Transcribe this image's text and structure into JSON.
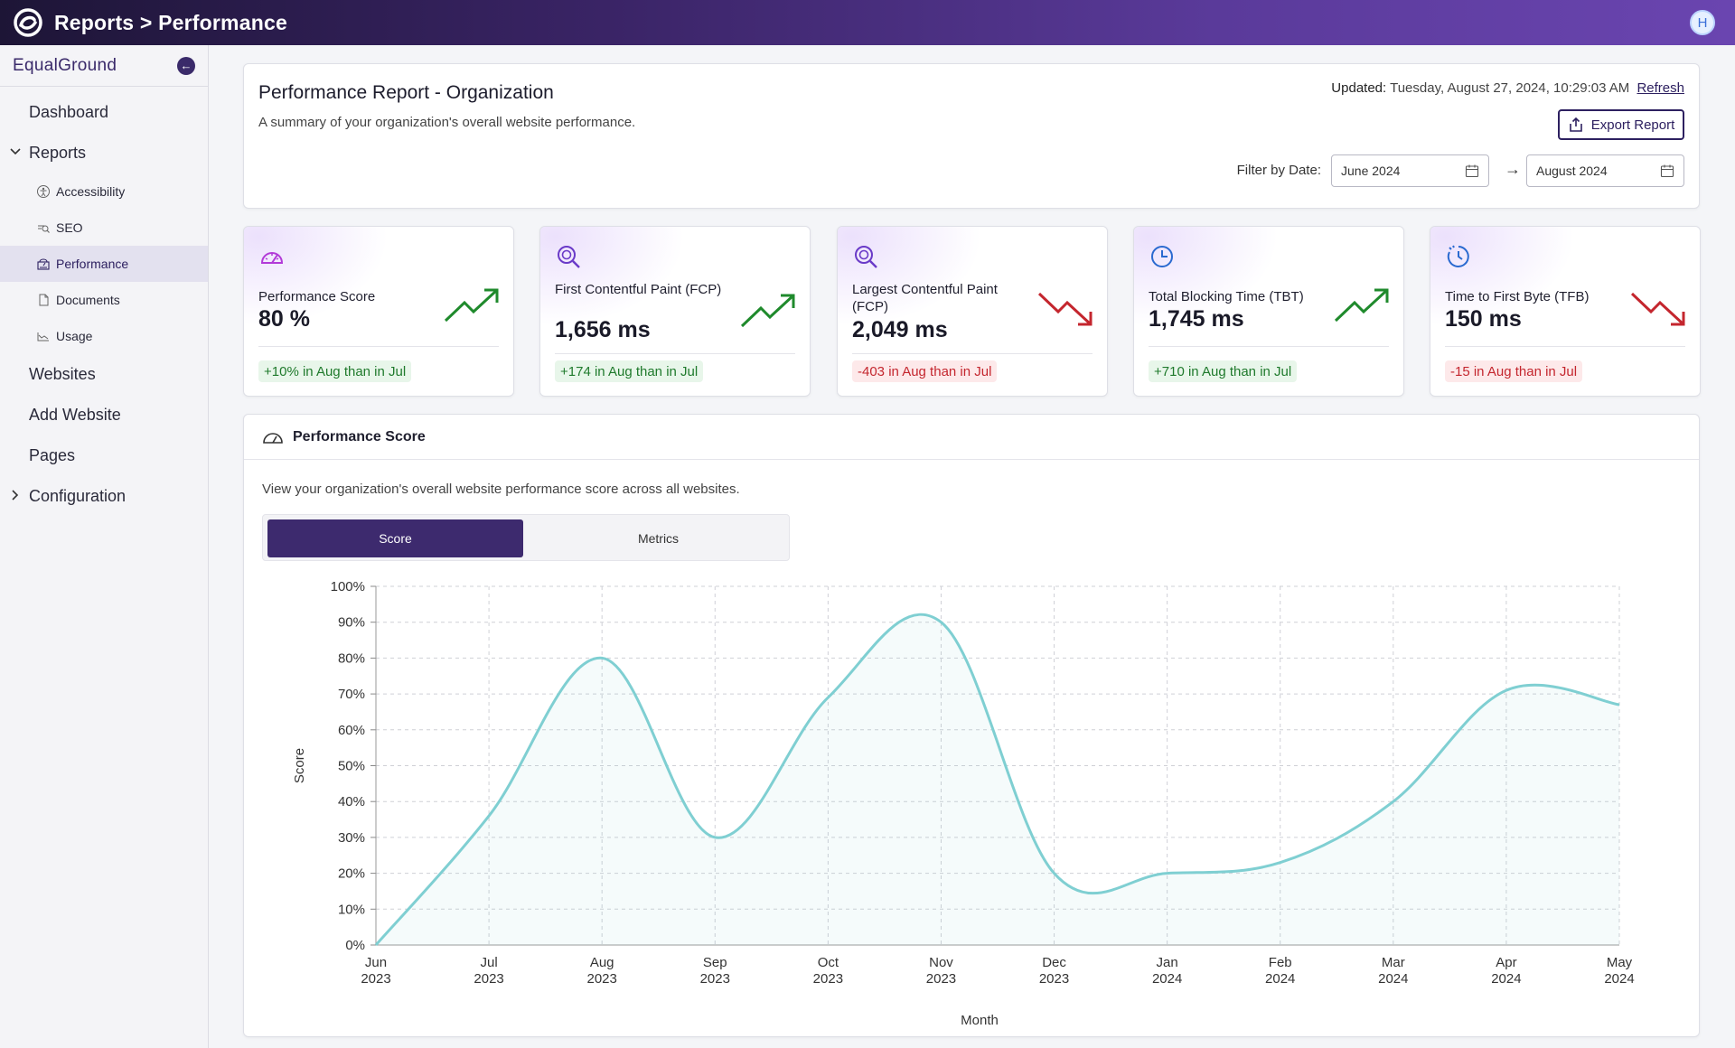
{
  "app": {
    "breadcrumb": "Reports > Performance",
    "avatar_initial": "H",
    "brand": "EqualGround"
  },
  "sidebar": {
    "items": [
      {
        "label": "Dashboard"
      },
      {
        "label": "Reports",
        "expanded": true,
        "children": [
          {
            "label": "Accessibility",
            "icon": "accessibility-icon"
          },
          {
            "label": "SEO",
            "icon": "seo-icon"
          },
          {
            "label": "Performance",
            "icon": "performance-icon",
            "active": true
          },
          {
            "label": "Documents",
            "icon": "document-icon"
          },
          {
            "label": "Usage",
            "icon": "usage-icon"
          }
        ]
      },
      {
        "label": "Websites"
      },
      {
        "label": "Add Website"
      },
      {
        "label": "Pages"
      },
      {
        "label": "Configuration",
        "expanded": false
      }
    ]
  },
  "header": {
    "title": "Performance Report - Organization",
    "description": "A summary of your organization's overall website performance.",
    "updated_label": "Updated:",
    "updated_value": "Tuesday, August 27, 2024, 10:29:03 AM",
    "refresh_label": "Refresh",
    "export_label": "Export Report",
    "filter_label": "Filter by Date:",
    "date_start": "June 2024",
    "date_end": "August 2024"
  },
  "metrics": [
    {
      "label": "Performance Score",
      "value": "80 %",
      "change": "+10% in Aug than in Jul",
      "trend": "up",
      "icon": "gauge-icon"
    },
    {
      "label": "First Contentful Paint (FCP)",
      "value": "1,656 ms",
      "change": "+174 in Aug than in Jul",
      "trend": "up",
      "icon": "magnify-icon"
    },
    {
      "label": "Largest Contentful Paint (FCP)",
      "value": "2,049 ms",
      "change": "-403 in Aug than in Jul",
      "trend": "down",
      "icon": "magnify-icon"
    },
    {
      "label": "Total Blocking Time (TBT)",
      "value": "1,745 ms",
      "change": "+710 in Aug than in Jul",
      "trend": "up",
      "icon": "clock-icon"
    },
    {
      "label": "Time to First Byte (TFB)",
      "value": "150 ms",
      "change": "-15 in Aug than in Jul",
      "trend": "down",
      "icon": "timer-icon"
    }
  ],
  "colors": {
    "up": "#1f8a2c",
    "down": "#c4262e",
    "line": "#7fcfd2",
    "accent": "#3d2a6e"
  },
  "chart_section": {
    "title": "Performance Score",
    "description": "View your organization's overall website performance score across all websites.",
    "tabs": [
      {
        "label": "Score",
        "active": true
      },
      {
        "label": "Metrics",
        "active": false
      }
    ]
  },
  "chart_data": {
    "type": "line",
    "title": "",
    "xlabel": "Month",
    "ylabel": "Score",
    "ylim": [
      0,
      100
    ],
    "yticks": [
      "0%",
      "10%",
      "20%",
      "30%",
      "40%",
      "50%",
      "60%",
      "70%",
      "80%",
      "90%",
      "100%"
    ],
    "categories": [
      [
        "Jun",
        "2023"
      ],
      [
        "Jul",
        "2023"
      ],
      [
        "Aug",
        "2023"
      ],
      [
        "Sep",
        "2023"
      ],
      [
        "Oct",
        "2023"
      ],
      [
        "Nov",
        "2023"
      ],
      [
        "Dec",
        "2023"
      ],
      [
        "Jan",
        "2024"
      ],
      [
        "Feb",
        "2024"
      ],
      [
        "Mar",
        "2024"
      ],
      [
        "Apr",
        "2024"
      ],
      [
        "May",
        "2024"
      ]
    ],
    "series": [
      {
        "values": [
          0,
          36,
          80,
          30,
          69,
          90,
          20,
          20,
          23,
          40,
          71,
          67
        ]
      }
    ],
    "grid": true
  }
}
